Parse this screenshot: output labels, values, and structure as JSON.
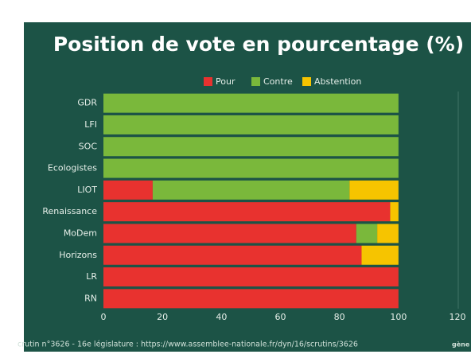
{
  "chart_data": {
    "type": "stacked-barh",
    "title": "Position de vote en pourcentage (%)",
    "categories": [
      "GDR",
      "LFI",
      "SOC",
      "Ecologistes",
      "LIOT",
      "Renaissance",
      "MoDem",
      "Horizons",
      "LR",
      "RN"
    ],
    "series": [
      {
        "name": "Pour",
        "color": "#e8322f",
        "values": [
          0,
          0,
          0,
          0,
          16.7,
          97.2,
          85.7,
          87.5,
          100,
          100
        ]
      },
      {
        "name": "Contre",
        "color": "#7ab83b",
        "values": [
          100,
          100,
          100,
          100,
          66.7,
          0,
          7.1,
          0,
          0,
          0
        ]
      },
      {
        "name": "Abstention",
        "color": "#f6c400",
        "values": [
          0,
          0,
          0,
          0,
          16.6,
          2.8,
          7.2,
          12.5,
          0,
          0
        ]
      }
    ],
    "xlim": [
      0,
      120
    ],
    "xticks": [
      0,
      20,
      40,
      60,
      80,
      100,
      120
    ],
    "legend": "top",
    "grid": false,
    "source": "crutin n°3626 - 16e législature : https://www.assemblee-nationale.fr/dyn/16/scrutins/3626",
    "logo": "gène"
  }
}
